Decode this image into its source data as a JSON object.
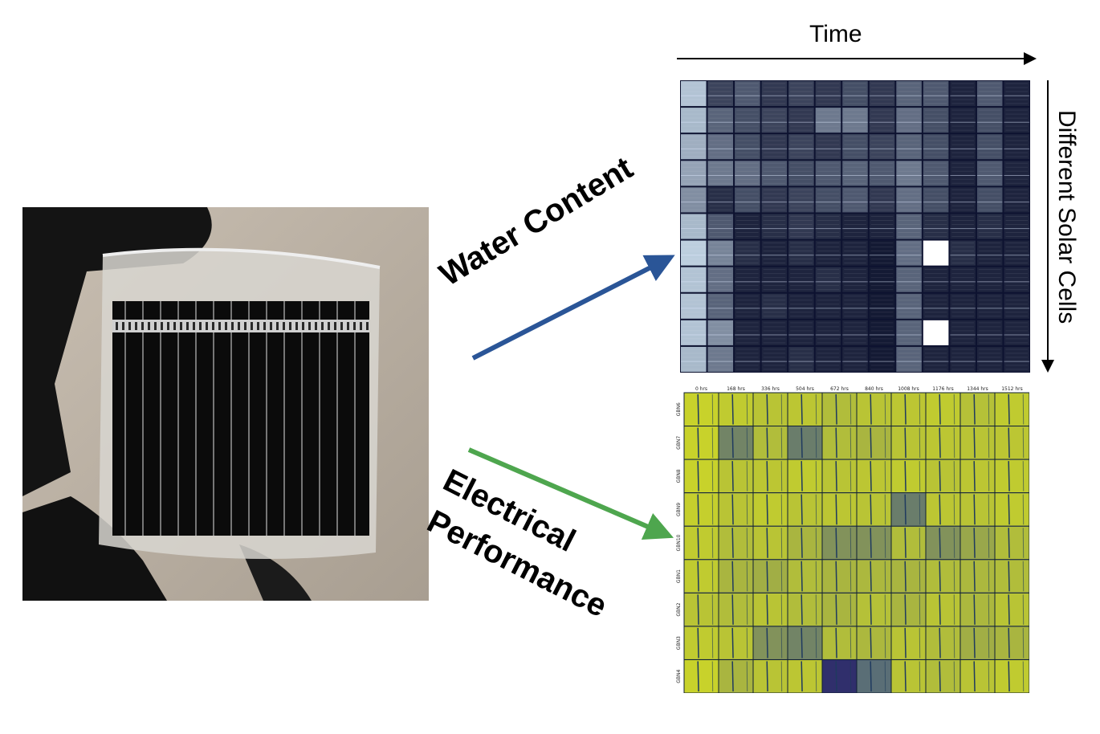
{
  "labels": {
    "time": "Time",
    "solar_cells": "Different Solar Cells",
    "water_content": "Water Content",
    "electrical_line1": "Electrical",
    "electrical_line2": "Performance"
  },
  "colors": {
    "water_arrow": "#2a5597",
    "electrical_arrow": "#4ea64e",
    "axis_arrows": "#000000",
    "water_dark": "#0d1230",
    "water_light": "#dbe9f3",
    "perf_low": "#3b528b",
    "perf_high": "#d8e020"
  },
  "perf_grid": {
    "columns": [
      "0 hrs",
      "168 hrs",
      "336 hrs",
      "504 hrs",
      "672 hrs",
      "840 hrs",
      "1008 hrs",
      "1176 hrs",
      "1344 hrs",
      "1512 hrs"
    ],
    "rows": [
      "GBN6",
      "GBN7",
      "GBN8",
      "GBN9",
      "GBN10",
      "GBN1",
      "GBN2",
      "GBN3",
      "GBN4"
    ],
    "tiles": [
      [
        0.9,
        0.85,
        0.8,
        0.82,
        0.75,
        0.8,
        0.82,
        0.85,
        0.78,
        0.85
      ],
      [
        0.9,
        0.35,
        0.75,
        0.3,
        0.75,
        0.7,
        0.8,
        0.82,
        0.8,
        0.82
      ],
      [
        0.9,
        0.8,
        0.82,
        0.85,
        0.8,
        0.82,
        0.85,
        0.8,
        0.82,
        0.85
      ],
      [
        0.88,
        0.8,
        0.85,
        0.8,
        0.82,
        0.8,
        0.3,
        0.82,
        0.8,
        0.85
      ],
      [
        0.85,
        0.75,
        0.8,
        0.7,
        0.45,
        0.45,
        0.75,
        0.45,
        0.6,
        0.75
      ],
      [
        0.85,
        0.7,
        0.65,
        0.75,
        0.7,
        0.72,
        0.7,
        0.75,
        0.72,
        0.75
      ],
      [
        0.8,
        0.75,
        0.8,
        0.75,
        0.7,
        0.78,
        0.7,
        0.8,
        0.72,
        0.8
      ],
      [
        0.85,
        0.8,
        0.45,
        0.35,
        0.75,
        0.72,
        0.8,
        0.75,
        0.65,
        0.7
      ],
      [
        0.9,
        0.7,
        0.8,
        0.82,
        0.05,
        0.2,
        0.8,
        0.75,
        0.8,
        0.85
      ]
    ]
  },
  "water_grid": {
    "rows": 11,
    "cols": 13,
    "tiles": [
      [
        0.85,
        0.25,
        0.35,
        0.2,
        0.25,
        0.2,
        0.3,
        0.2,
        0.4,
        0.35,
        0.1,
        0.35,
        0.1
      ],
      [
        0.8,
        0.4,
        0.3,
        0.25,
        0.2,
        0.5,
        0.5,
        0.2,
        0.45,
        0.3,
        0.1,
        0.3,
        0.1
      ],
      [
        0.75,
        0.45,
        0.3,
        0.2,
        0.25,
        0.2,
        0.3,
        0.25,
        0.4,
        0.3,
        0.1,
        0.3,
        0.1
      ],
      [
        0.7,
        0.5,
        0.45,
        0.35,
        0.3,
        0.35,
        0.4,
        0.35,
        0.5,
        0.35,
        0.1,
        0.35,
        0.1
      ],
      [
        0.6,
        0.15,
        0.3,
        0.2,
        0.25,
        0.3,
        0.35,
        0.2,
        0.45,
        0.3,
        0.1,
        0.3,
        0.1
      ],
      [
        0.8,
        0.35,
        0.1,
        0.15,
        0.2,
        0.15,
        0.1,
        0.1,
        0.4,
        0.15,
        0.1,
        0.15,
        0.1
      ],
      [
        0.9,
        0.55,
        0.15,
        0.1,
        0.15,
        0.1,
        0.1,
        0.05,
        0.45,
        1.0,
        0.15,
        0.1,
        0.1
      ],
      [
        0.85,
        0.45,
        0.1,
        0.1,
        0.1,
        0.15,
        0.1,
        0.05,
        0.4,
        0.1,
        0.1,
        0.1,
        0.1
      ],
      [
        0.85,
        0.4,
        0.1,
        0.15,
        0.1,
        0.1,
        0.1,
        0.05,
        0.4,
        0.1,
        0.1,
        0.1,
        0.1
      ],
      [
        0.85,
        0.6,
        0.1,
        0.1,
        0.1,
        0.1,
        0.1,
        0.05,
        0.4,
        1.0,
        0.1,
        0.1,
        0.1
      ],
      [
        0.8,
        0.5,
        0.1,
        0.1,
        0.15,
        0.1,
        0.1,
        0.05,
        0.4,
        0.1,
        0.1,
        0.1,
        0.1
      ]
    ]
  }
}
